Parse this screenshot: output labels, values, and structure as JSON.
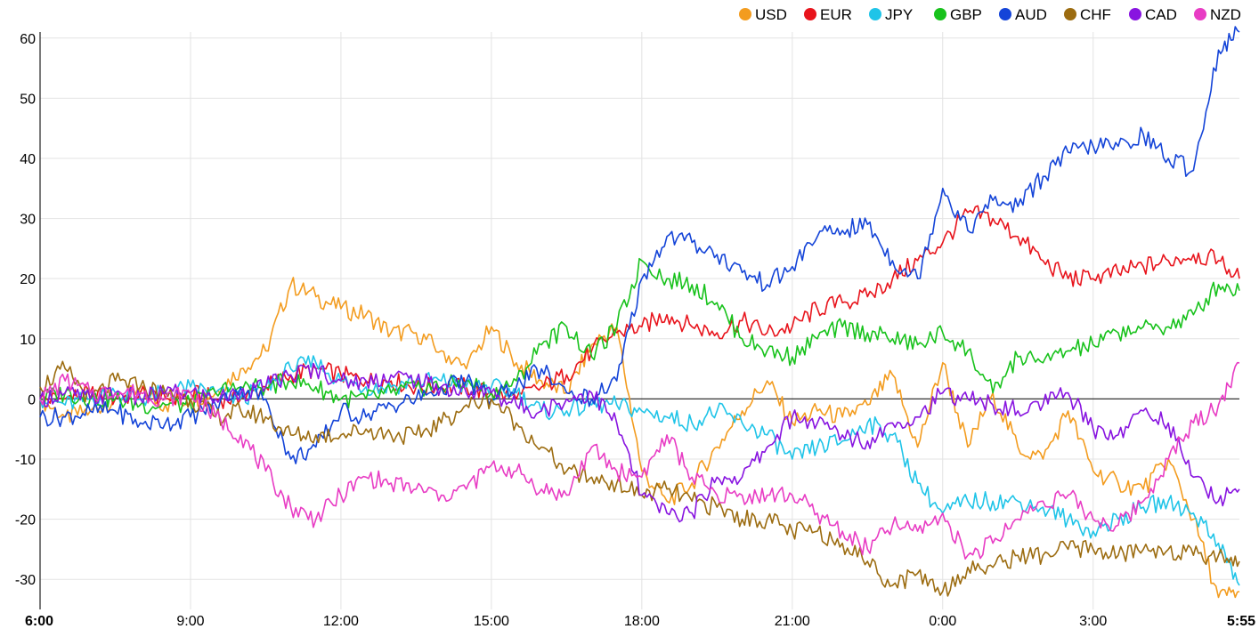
{
  "chart_data": {
    "type": "line",
    "title": "",
    "xlabel": "",
    "ylabel": "",
    "ylim": [
      -35,
      61
    ],
    "xlim": [
      "6:00",
      "5:55"
    ],
    "grid": true,
    "legend_position": "top-right",
    "y_ticks": [
      60,
      50,
      40,
      30,
      20,
      10,
      0,
      -10,
      -20,
      -30
    ],
    "x_ticks": [
      {
        "label": "6:00",
        "hour": 0,
        "bold": true
      },
      {
        "label": "9:00",
        "hour": 3,
        "bold": false
      },
      {
        "label": "12:00",
        "hour": 6,
        "bold": false
      },
      {
        "label": "15:00",
        "hour": 9,
        "bold": false
      },
      {
        "label": "18:00",
        "hour": 12,
        "bold": false
      },
      {
        "label": "21:00",
        "hour": 15,
        "bold": false
      },
      {
        "label": "0:00",
        "hour": 18,
        "bold": false
      },
      {
        "label": "3:00",
        "hour": 21,
        "bold": false
      },
      {
        "label": "5:55",
        "hour": 23.9167,
        "bold": true
      }
    ],
    "series": [
      {
        "name": "USD",
        "color": "#f39c1f",
        "x": [
          0,
          0.5,
          1,
          1.5,
          2,
          2.5,
          3,
          3.5,
          4,
          4.5,
          5,
          5.5,
          6,
          6.5,
          7,
          7.5,
          8,
          8.5,
          9,
          9.5,
          10,
          10.5,
          11,
          11.5,
          12,
          12.5,
          13,
          13.5,
          14,
          14.5,
          15,
          15.5,
          16,
          16.5,
          17,
          17.5,
          18,
          18.5,
          19,
          19.5,
          20,
          20.5,
          21,
          21.5,
          22,
          22.5,
          23,
          23.5,
          23.9167
        ],
        "values": [
          0,
          -3,
          -2,
          0,
          1,
          -1,
          0,
          1,
          5,
          8,
          19,
          17,
          15,
          14,
          11,
          11,
          8,
          5,
          12,
          6,
          3,
          1,
          9,
          12,
          -12,
          -17,
          -14,
          -8,
          -2,
          3,
          -4,
          -2,
          -3,
          -1,
          4,
          -8,
          6,
          -8,
          1,
          -8,
          -10,
          -2,
          -12,
          -14,
          -15,
          -10,
          -20,
          -33,
          -32
        ]
      },
      {
        "name": "EUR",
        "color": "#e8141c",
        "x": [
          0,
          0.5,
          1,
          1.5,
          2,
          2.5,
          3,
          3.5,
          4,
          4.5,
          5,
          5.5,
          6,
          6.5,
          7,
          7.5,
          8,
          8.5,
          9,
          9.5,
          10,
          10.5,
          11,
          11.5,
          12,
          12.5,
          13,
          13.5,
          14,
          14.5,
          15,
          15.5,
          16,
          16.5,
          17,
          17.5,
          18,
          18.5,
          19,
          19.5,
          20,
          20.5,
          21,
          21.5,
          22,
          22.5,
          23,
          23.5,
          23.9167
        ],
        "values": [
          0,
          0,
          1,
          0,
          1,
          0,
          1,
          0,
          0,
          2,
          4,
          5,
          4,
          3,
          3,
          2,
          2,
          2,
          1,
          0,
          2,
          4,
          8,
          11,
          12,
          14,
          12,
          11,
          13,
          11,
          12,
          15,
          16,
          17,
          20,
          23,
          26,
          31,
          30,
          27,
          23,
          20,
          20,
          21,
          22,
          23,
          24,
          23,
          20
        ]
      },
      {
        "name": "JPY",
        "color": "#1fc4e8",
        "x": [
          0,
          0.5,
          1,
          1.5,
          2,
          2.5,
          3,
          3.5,
          4,
          4.5,
          5,
          5.5,
          6,
          6.5,
          7,
          7.5,
          8,
          8.5,
          9,
          9.5,
          10,
          10.5,
          11,
          11.5,
          12,
          12.5,
          13,
          13.5,
          14,
          14.5,
          15,
          15.5,
          16,
          16.5,
          17,
          17.5,
          18,
          18.5,
          19,
          19.5,
          20,
          20.5,
          21,
          21.5,
          22,
          22.5,
          23,
          23.5,
          23.9167
        ],
        "values": [
          0,
          -1,
          0,
          1,
          0,
          1,
          2,
          1,
          0,
          2,
          5,
          6,
          3,
          2,
          2,
          3,
          3,
          2,
          2,
          1,
          -2,
          -2,
          -1,
          -1,
          -2,
          -3,
          -4,
          -2,
          -4,
          -6,
          -10,
          -8,
          -7,
          -4,
          -6,
          -14,
          -19,
          -17,
          -17,
          -17,
          -18,
          -20,
          -22,
          -20,
          -18,
          -17,
          -19,
          -24,
          -31
        ]
      },
      {
        "name": "GBP",
        "color": "#18c21c",
        "x": [
          0,
          0.5,
          1,
          1.5,
          2,
          2.5,
          3,
          3.5,
          4,
          4.5,
          5,
          5.5,
          6,
          6.5,
          7,
          7.5,
          8,
          8.5,
          9,
          9.5,
          10,
          10.5,
          11,
          11.5,
          12,
          12.5,
          13,
          13.5,
          14,
          14.5,
          15,
          15.5,
          16,
          16.5,
          17,
          17.5,
          18,
          18.5,
          19,
          19.5,
          20,
          20.5,
          21,
          21.5,
          22,
          22.5,
          23,
          23.5,
          23.9167
        ],
        "values": [
          0,
          1,
          0,
          0,
          -1,
          -1,
          -1,
          1,
          2,
          2,
          3,
          2,
          0,
          0,
          1,
          2,
          2,
          3,
          1,
          3,
          9,
          12,
          7,
          12,
          23,
          20,
          19,
          16,
          10,
          8,
          7,
          10,
          12,
          11,
          10,
          9,
          11,
          8,
          1,
          7,
          6,
          8,
          9,
          11,
          12,
          12,
          14,
          19,
          18
        ]
      },
      {
        "name": "AUD",
        "color": "#1444d8",
        "x": [
          0,
          0.5,
          1,
          1.5,
          2,
          2.5,
          3,
          3.5,
          4,
          4.5,
          5,
          5.5,
          6,
          6.5,
          7,
          7.5,
          8,
          8.5,
          9,
          9.5,
          10,
          10.5,
          11,
          11.5,
          12,
          12.5,
          13,
          13.5,
          14,
          14.5,
          15,
          15.5,
          16,
          16.5,
          17,
          17.5,
          18,
          18.5,
          19,
          19.5,
          20,
          20.5,
          21,
          21.5,
          22,
          22.5,
          23,
          23.5,
          23.9167
        ],
        "values": [
          -3,
          -3,
          -2,
          -2,
          -4,
          -4,
          -3,
          -1,
          2,
          0,
          -10,
          -8,
          -2,
          -3,
          -1,
          0,
          2,
          3,
          0,
          2,
          5,
          1,
          0,
          3,
          20,
          27,
          26,
          24,
          21,
          19,
          22,
          27,
          28,
          29,
          23,
          20,
          35,
          28,
          33,
          32,
          37,
          41,
          42,
          42,
          44,
          40,
          38,
          58,
          61
        ]
      },
      {
        "name": "CHF",
        "color": "#9c6c10",
        "x": [
          0,
          0.5,
          1,
          1.5,
          2,
          2.5,
          3,
          3.5,
          4,
          4.5,
          5,
          5.5,
          6,
          6.5,
          7,
          7.5,
          8,
          8.5,
          9,
          9.5,
          10,
          10.5,
          11,
          11.5,
          12,
          12.5,
          13,
          13.5,
          14,
          14.5,
          15,
          15.5,
          16,
          16.5,
          17,
          17.5,
          18,
          18.5,
          19,
          19.5,
          20,
          20.5,
          21,
          21.5,
          22,
          22.5,
          23,
          23.5,
          23.9167
        ],
        "values": [
          2,
          5,
          0,
          3,
          2,
          1,
          0,
          -3,
          -2,
          -3,
          -6,
          -6,
          -6,
          -5,
          -6,
          -6,
          -4,
          -1,
          0,
          -4,
          -8,
          -12,
          -13,
          -14,
          -16,
          -15,
          -17,
          -18,
          -20,
          -20,
          -22,
          -22,
          -24,
          -27,
          -31,
          -29,
          -32,
          -28,
          -28,
          -26,
          -26,
          -25,
          -25,
          -26,
          -25,
          -25,
          -26,
          -26,
          -27
        ]
      },
      {
        "name": "CAD",
        "color": "#8814e0",
        "x": [
          0,
          0.5,
          1,
          1.5,
          2,
          2.5,
          3,
          3.5,
          4,
          4.5,
          5,
          5.5,
          6,
          6.5,
          7,
          7.5,
          8,
          8.5,
          9,
          9.5,
          10,
          10.5,
          11,
          11.5,
          12,
          12.5,
          13,
          13.5,
          14,
          14.5,
          15,
          15.5,
          16,
          16.5,
          17,
          17.5,
          18,
          18.5,
          19,
          19.5,
          20,
          20.5,
          21,
          21.5,
          22,
          22.5,
          23,
          23.5,
          23.9167
        ],
        "values": [
          0,
          1,
          0,
          1,
          0,
          1,
          1,
          0,
          1,
          2,
          4,
          5,
          3,
          3,
          4,
          3,
          2,
          1,
          1,
          -1,
          -2,
          0,
          1,
          -4,
          -16,
          -19,
          -19,
          -13,
          -13,
          -8,
          -3,
          -4,
          -6,
          -7,
          -4,
          -3,
          1,
          0,
          -1,
          -2,
          -1,
          1,
          -5,
          -6,
          -2,
          -4,
          -13,
          -17,
          -15
        ]
      },
      {
        "name": "NZD",
        "color": "#e83cc4",
        "x": [
          0,
          0.5,
          1,
          1.5,
          2,
          2.5,
          3,
          3.5,
          4,
          4.5,
          5,
          5.5,
          6,
          6.5,
          7,
          7.5,
          8,
          8.5,
          9,
          9.5,
          10,
          10.5,
          11,
          11.5,
          12,
          12.5,
          13,
          13.5,
          14,
          14.5,
          15,
          15.5,
          16,
          16.5,
          17,
          17.5,
          18,
          18.5,
          19,
          19.5,
          20,
          20.5,
          21,
          21.5,
          22,
          22.5,
          23,
          23.5,
          23.9167
        ],
        "values": [
          0,
          3,
          1,
          1,
          1,
          0,
          1,
          -3,
          -6,
          -12,
          -18,
          -20,
          -16,
          -13,
          -14,
          -15,
          -16,
          -15,
          -11,
          -12,
          -15,
          -16,
          -8,
          -12,
          -13,
          -6,
          -13,
          -16,
          -16,
          -16,
          -16,
          -19,
          -22,
          -25,
          -21,
          -22,
          -19,
          -26,
          -24,
          -20,
          -17,
          -16,
          -20,
          -21,
          -17,
          -10,
          -4,
          -1,
          6
        ]
      }
    ]
  }
}
